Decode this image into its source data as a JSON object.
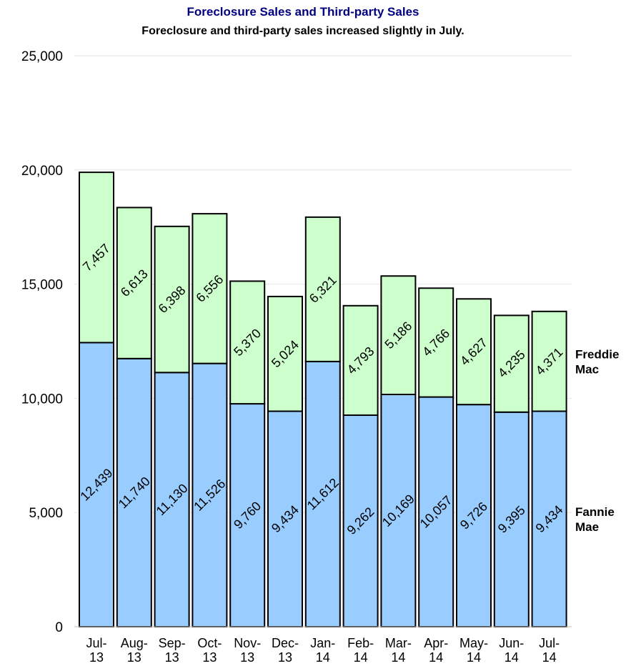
{
  "chart_data": {
    "type": "bar",
    "stacked": true,
    "title": "Foreclosure Sales and Third-party Sales",
    "subtitle": "Foreclosure and third-party sales increased slightly in July.",
    "categories": [
      "Jul-13",
      "Aug-13",
      "Sep-13",
      "Oct-13",
      "Nov-13",
      "Dec-13",
      "Jan-14",
      "Feb-14",
      "Mar-14",
      "Apr-14",
      "May-14",
      "Jun-14",
      "Jul-14"
    ],
    "category_lines": [
      [
        "Jul-",
        "13"
      ],
      [
        "Aug-",
        "13"
      ],
      [
        "Sep-",
        "13"
      ],
      [
        "Oct-",
        "13"
      ],
      [
        "Nov-",
        "13"
      ],
      [
        "Dec-",
        "13"
      ],
      [
        "Jan-",
        "14"
      ],
      [
        "Feb-",
        "14"
      ],
      [
        "Mar-",
        "14"
      ],
      [
        "Apr-",
        "14"
      ],
      [
        "May-",
        "14"
      ],
      [
        "Jun-",
        "14"
      ],
      [
        "Jul-",
        "14"
      ]
    ],
    "series": [
      {
        "name": "Fannie Mae",
        "name_lines": [
          "Fannie",
          "Mae"
        ],
        "color": "#99ccff",
        "values": [
          12439,
          11740,
          11130,
          11526,
          9760,
          9434,
          11612,
          9262,
          10169,
          10057,
          9726,
          9395,
          9434
        ],
        "labels": [
          "12,439",
          "11,740",
          "11,130",
          "11,526",
          "9,760",
          "9,434",
          "11,612",
          "9,262",
          "10,169",
          "10,057",
          "9,726",
          "9,395",
          "9,434"
        ]
      },
      {
        "name": "Freddie Mac",
        "name_lines": [
          "Freddie",
          "Mac"
        ],
        "color": "#ccffcc",
        "values": [
          7457,
          6613,
          6398,
          6556,
          5370,
          5024,
          6321,
          4793,
          5186,
          4766,
          4627,
          4235,
          4371
        ],
        "labels": [
          "7,457",
          "6,613",
          "6,398",
          "6,556",
          "5,370",
          "5,024",
          "6,321",
          "4,793",
          "5,186",
          "4,766",
          "4,627",
          "4,235",
          "4,371"
        ]
      }
    ],
    "ylim": [
      0,
      25000
    ],
    "yticks": [
      0,
      5000,
      10000,
      15000,
      20000,
      25000
    ],
    "ytick_labels": [
      "0",
      "5,000",
      "10,000",
      "15,000",
      "20,000",
      "25,000"
    ],
    "grid": true,
    "legend_position": "right"
  }
}
